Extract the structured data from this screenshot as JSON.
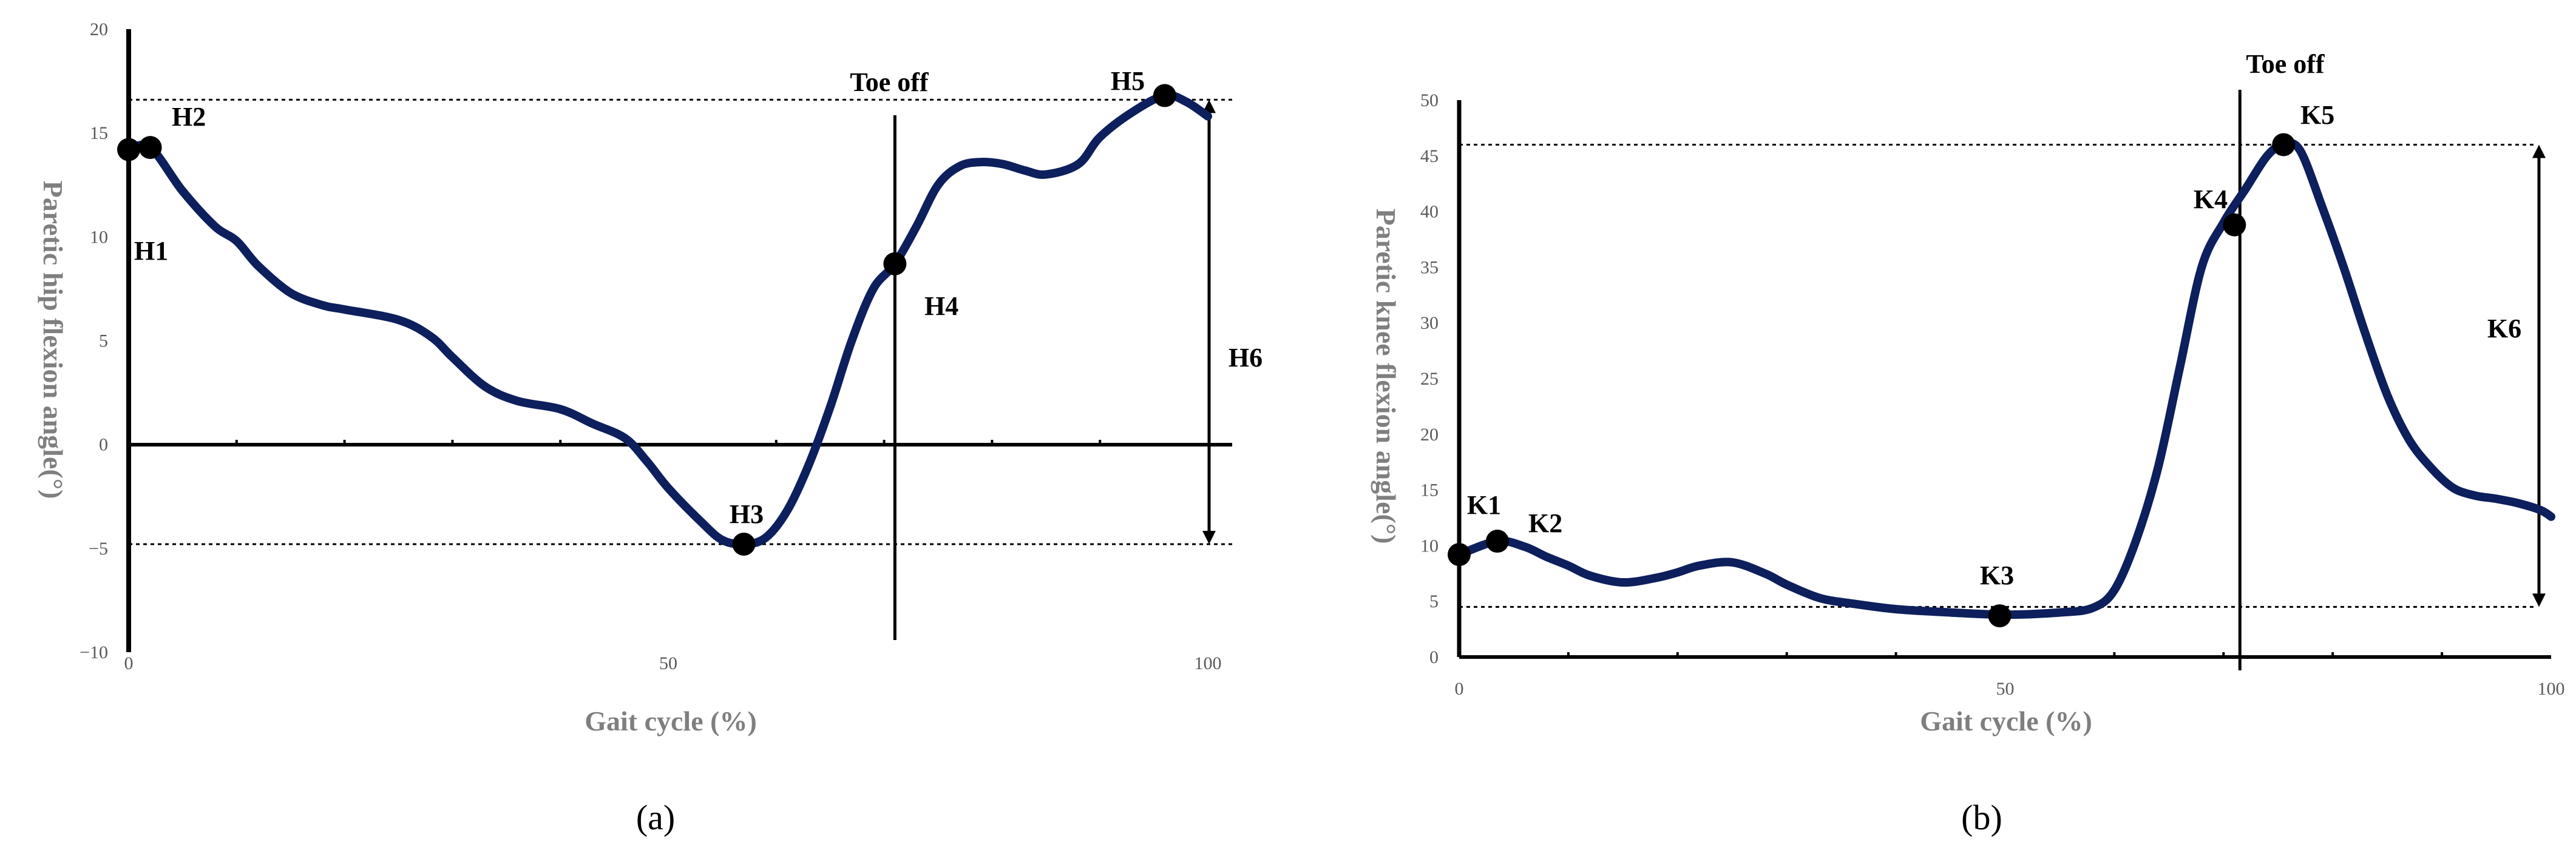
{
  "chart_data": [
    {
      "type": "line",
      "caption": "(a)",
      "xlabel": "Gait cycle (%)",
      "ylabel": "Paretic hip flexion angle(°)",
      "xlim": [
        0,
        100
      ],
      "ylim": [
        -10,
        20
      ],
      "xticks": [
        0,
        50,
        100
      ],
      "yticks": [
        -10,
        -5,
        0,
        5,
        10,
        15,
        20
      ],
      "grid": false,
      "series": [
        {
          "color": "#0d1f5c",
          "x": [
            0,
            2,
            5,
            8,
            10,
            12,
            15,
            18,
            20,
            25,
            28,
            30,
            33,
            36,
            40,
            43,
            46,
            48,
            50,
            53,
            55,
            57,
            59,
            61,
            63,
            65,
            67,
            69,
            71,
            73,
            75,
            77,
            79,
            81,
            83,
            85,
            88,
            90,
            93,
            96,
            98,
            100
          ],
          "y": [
            14.2,
            14.3,
            12.2,
            10.5,
            9.8,
            8.6,
            7.3,
            6.7,
            6.5,
            6.0,
            5.2,
            4.2,
            2.8,
            2.1,
            1.7,
            1.0,
            0.3,
            -0.8,
            -2.1,
            -3.7,
            -4.6,
            -4.8,
            -4.5,
            -3.2,
            -1.0,
            1.8,
            5.0,
            7.5,
            8.7,
            10.5,
            12.5,
            13.4,
            13.6,
            13.5,
            13.2,
            13.0,
            13.5,
            14.8,
            16.0,
            16.8,
            16.5,
            15.8
          ]
        }
      ],
      "points": [
        {
          "label": "H1",
          "x": 0,
          "y": 14.2
        },
        {
          "label": "H2",
          "x": 2,
          "y": 14.3
        },
        {
          "label": "H3",
          "x": 57,
          "y": -4.8
        },
        {
          "label": "H4",
          "x": 71,
          "y": 8.7
        },
        {
          "label": "H5",
          "x": 96,
          "y": 16.8
        }
      ],
      "annotations": {
        "toe_off": "Toe off",
        "toe_off_x": 71,
        "range_label": "H6",
        "max_ref": 16.6,
        "min_ref": -4.8
      }
    },
    {
      "type": "line",
      "caption": "(b)",
      "xlabel": "Gait cycle (%)",
      "ylabel": "Paretic knee flexion angle(°)",
      "xlim": [
        0,
        100
      ],
      "ylim": [
        0,
        50
      ],
      "xticks": [
        0,
        50,
        100
      ],
      "yticks": [
        0,
        5,
        10,
        15,
        20,
        25,
        30,
        35,
        40,
        45,
        50
      ],
      "grid": false,
      "series": [
        {
          "color": "#0d1f5c",
          "x": [
            0,
            3.5,
            6,
            8,
            10,
            12,
            15,
            18,
            20,
            22,
            25,
            28,
            30,
            33,
            36,
            40,
            45,
            50,
            55,
            58,
            60,
            62,
            64,
            66,
            68,
            70,
            72,
            74,
            75.5,
            77,
            79,
            81,
            83,
            85,
            87,
            89,
            91,
            93,
            95,
            97,
            99,
            100
          ],
          "y": [
            9.2,
            10.4,
            9.9,
            9.0,
            8.2,
            7.3,
            6.7,
            7.1,
            7.6,
            8.2,
            8.5,
            7.5,
            6.5,
            5.3,
            4.8,
            4.3,
            4.0,
            3.8,
            4.0,
            4.4,
            6.0,
            10.5,
            17.0,
            26.0,
            35.0,
            39.0,
            42.0,
            45.0,
            46.0,
            45.5,
            40.5,
            35.0,
            29.0,
            23.5,
            19.5,
            17.0,
            15.2,
            14.5,
            14.2,
            13.8,
            13.2,
            12.6
          ]
        }
      ],
      "points": [
        {
          "label": "K1",
          "x": 0,
          "y": 9.2
        },
        {
          "label": "K2",
          "x": 3.5,
          "y": 10.4
        },
        {
          "label": "K3",
          "x": 49.5,
          "y": 3.7
        },
        {
          "label": "K4",
          "x": 71,
          "y": 38.8
        },
        {
          "label": "K5",
          "x": 75.5,
          "y": 46.0
        }
      ],
      "annotations": {
        "toe_off": "Toe off",
        "toe_off_x": 71.5,
        "range_label": "K6",
        "max_ref": 46.0,
        "min_ref": 4.5
      }
    }
  ]
}
